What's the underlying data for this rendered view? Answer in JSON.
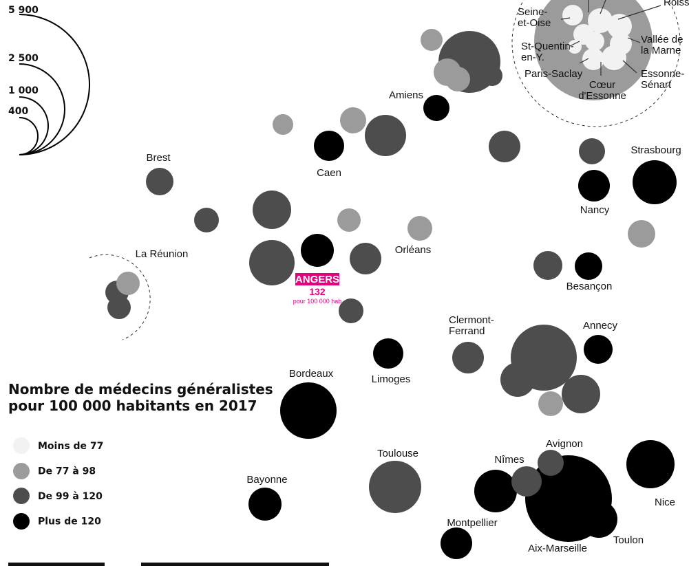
{
  "size_legend": {
    "labels": [
      "5 900",
      "2 500",
      "1 000",
      "400"
    ]
  },
  "color_legend": {
    "title": [
      "Nombre de médecins généralistes",
      "pour 100 000 habitants en 2017"
    ],
    "items": [
      "Moins de 77",
      "De 77 à 98",
      "De 99 à 120",
      "Plus de 120"
    ]
  },
  "highlight": {
    "name": "ANGERS",
    "value": "132",
    "unit": "pour 100 000 hab"
  },
  "cities": [
    [
      "Roissy"
    ],
    [
      "Seine-",
      "et-Oise"
    ],
    [
      "St-Quentin-",
      "en-Y."
    ],
    [
      "Paris-Saclay"
    ],
    [
      "Vallée de",
      "la Marne"
    ],
    [
      "Essonne-",
      "Sénart"
    ],
    [
      "Cœur",
      "d'Essonne"
    ],
    [
      "Amiens"
    ],
    [
      "Caen"
    ],
    [
      "Brest"
    ],
    [
      "Strasbourg"
    ],
    [
      "Nancy"
    ],
    [
      "La Réunion"
    ],
    [
      "Orléans"
    ],
    [
      "Besançon"
    ],
    [
      "Clermont-",
      "Ferrand"
    ],
    [
      "Annecy"
    ],
    [
      "Limoges"
    ],
    [
      "Bordeaux"
    ],
    [
      "Toulouse"
    ],
    [
      "Nîmes"
    ],
    [
      "Avignon"
    ],
    [
      "Bayonne"
    ],
    [
      "Montpellier"
    ],
    [
      "Nice"
    ],
    [
      "Aix-Marseille"
    ],
    [
      "Toulon"
    ]
  ]
}
